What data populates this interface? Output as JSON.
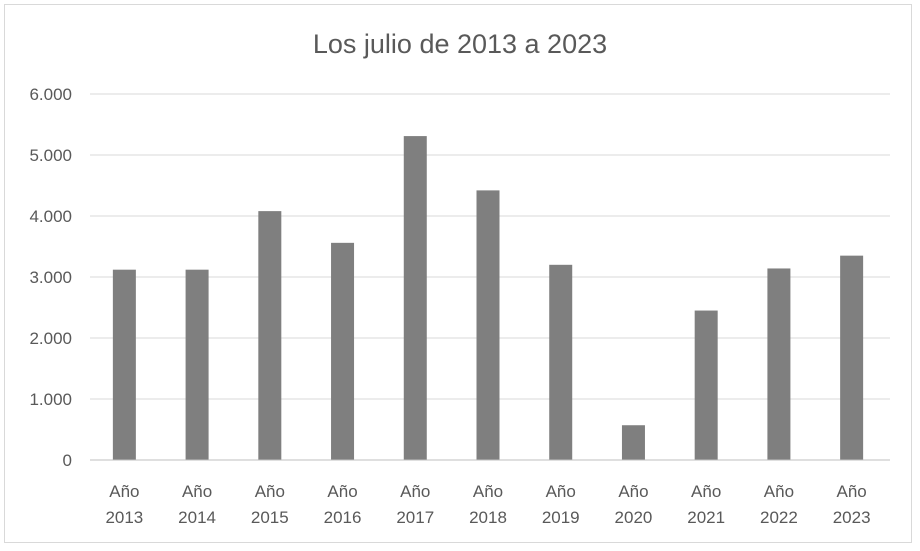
{
  "chart_data": {
    "type": "bar",
    "title": "Los julio de 2013 a 2023",
    "xlabel": "",
    "ylabel": "",
    "categories": [
      [
        "Año",
        "2013"
      ],
      [
        "Año",
        "2014"
      ],
      [
        "Año",
        "2015"
      ],
      [
        "Año",
        "2016"
      ],
      [
        "Año",
        "2017"
      ],
      [
        "Año",
        "2018"
      ],
      [
        "Año",
        "2019"
      ],
      [
        "Año",
        "2020"
      ],
      [
        "Año",
        "2021"
      ],
      [
        "Año",
        "2022"
      ],
      [
        "Año",
        "2023"
      ]
    ],
    "values": [
      3120,
      3120,
      4080,
      3560,
      5310,
      4420,
      3200,
      570,
      2450,
      3140,
      3350
    ],
    "ylim": [
      0,
      6000
    ],
    "yticks": [
      0,
      1000,
      2000,
      3000,
      4000,
      5000,
      6000
    ],
    "ytick_labels": [
      "0",
      "1.000",
      "2.000",
      "3.000",
      "4.000",
      "5.000",
      "6.000"
    ],
    "grid": true,
    "bar_color": "#7f7f7f",
    "grid_color": "#d9d9d9"
  }
}
